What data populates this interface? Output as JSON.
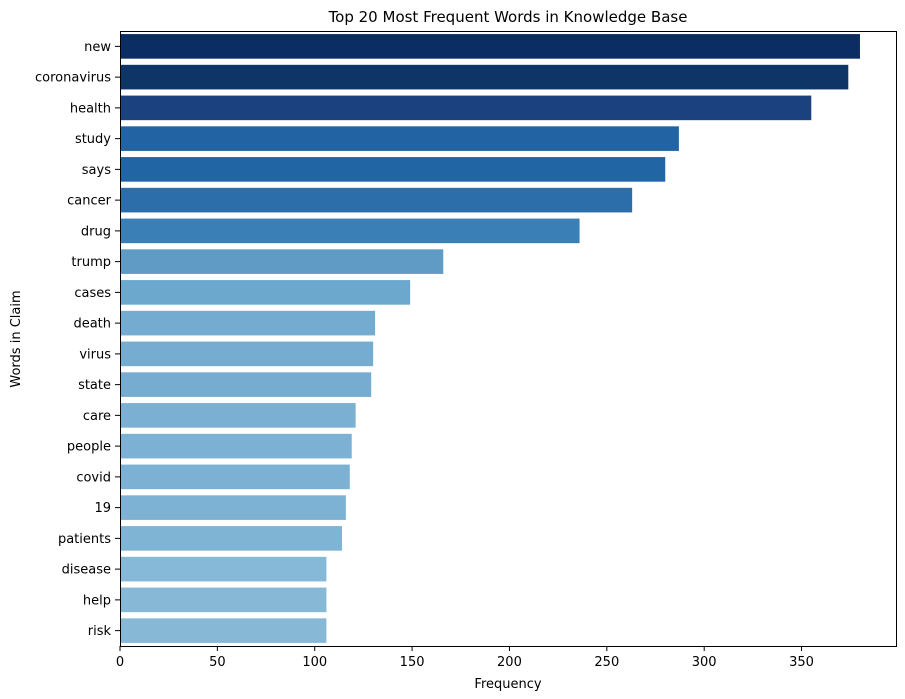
{
  "chart_data": {
    "type": "bar",
    "orientation": "horizontal",
    "title": "Top 20 Most Frequent Words in Knowledge Base",
    "xlabel": "Frequency",
    "ylabel": "Words in Claim",
    "xlim": [
      0,
      400
    ],
    "xticks": [
      0,
      50,
      100,
      150,
      200,
      250,
      300,
      350
    ],
    "grid": false,
    "categories": [
      "new",
      "coronavirus",
      "health",
      "study",
      "says",
      "cancer",
      "drug",
      "trump",
      "cases",
      "death",
      "virus",
      "state",
      "care",
      "people",
      "covid",
      "19",
      "patients",
      "disease",
      "help",
      "risk"
    ],
    "values": [
      380,
      374,
      355,
      287,
      280,
      263,
      236,
      166,
      149,
      131,
      130,
      129,
      121,
      119,
      118,
      116,
      114,
      106,
      106,
      106
    ],
    "colors": [
      "#0b2d64",
      "#0f3567",
      "#1b427f",
      "#2163a3",
      "#2265a4",
      "#2b6ea9",
      "#3a7fb5",
      "#5f9bc5",
      "#6ca7cd",
      "#74abd0",
      "#75acd0",
      "#76acd0",
      "#7bb0d3",
      "#7cb1d3",
      "#7db1d3",
      "#7eb2d4",
      "#80b4d5",
      "#86b8d7",
      "#87b9d7",
      "#87b9d7"
    ]
  }
}
